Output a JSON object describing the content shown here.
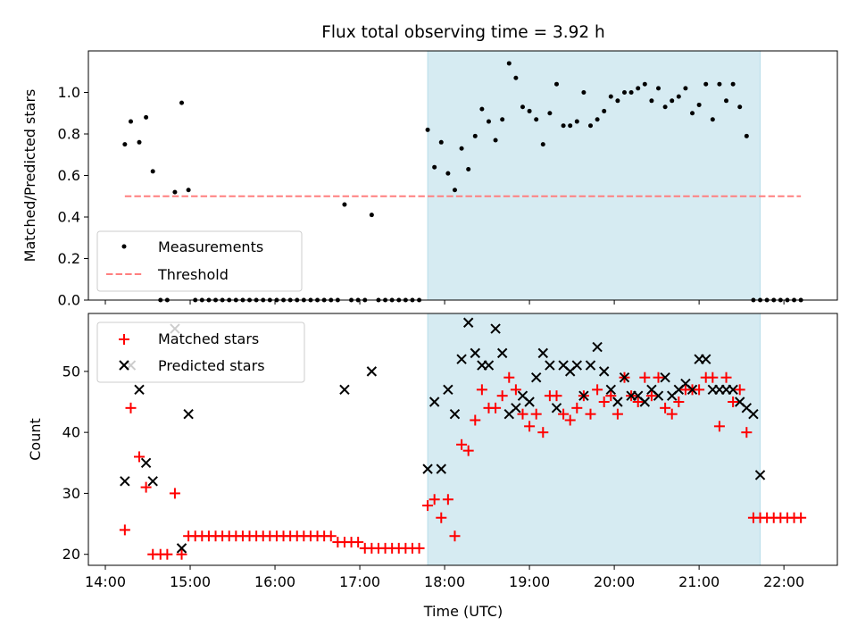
{
  "chart_data": {
    "title": "Flux total observing time = 3.92 h",
    "xlabel": "Time (UTC)",
    "x_unit": "hours UTC",
    "xlim": [
      13.8,
      22.63
    ],
    "xticks": [
      {
        "value": 14,
        "label": "14:00"
      },
      {
        "value": 15,
        "label": "15:00"
      },
      {
        "value": 16,
        "label": "16:00"
      },
      {
        "value": 17,
        "label": "17:00"
      },
      {
        "value": 18,
        "label": "18:00"
      },
      {
        "value": 19,
        "label": "19:00"
      },
      {
        "value": 20,
        "label": "20:00"
      },
      {
        "value": 21,
        "label": "21:00"
      },
      {
        "value": 22,
        "label": "22:00"
      }
    ],
    "shaded_span": {
      "x_start": 17.8,
      "x_end": 21.72,
      "color": "#add8e6"
    },
    "panels": [
      {
        "type": "scatter",
        "ylabel": "Matched/Predicted stars",
        "ylim": [
          0,
          1.2
        ],
        "yticks": [
          {
            "value": 0.0,
            "label": "0.0"
          },
          {
            "value": 0.2,
            "label": "0.2"
          },
          {
            "value": 0.4,
            "label": "0.4"
          },
          {
            "value": 0.6,
            "label": "0.6"
          },
          {
            "value": 0.8,
            "label": "0.8"
          },
          {
            "value": 1.0,
            "label": "1.0"
          }
        ],
        "legend": {
          "location": "lower left",
          "entries": [
            "Measurements",
            "Threshold"
          ]
        },
        "series": [
          {
            "name": "Measurements",
            "marker": "dot",
            "color": "#000000",
            "x": [
              14.23,
              14.3,
              14.4,
              14.48,
              14.56,
              14.65,
              14.73,
              14.82,
              14.9,
              14.98,
              15.06,
              15.14,
              15.22,
              15.3,
              15.38,
              15.46,
              15.54,
              15.62,
              15.7,
              15.78,
              15.86,
              15.94,
              16.02,
              16.1,
              16.18,
              16.26,
              16.34,
              16.42,
              16.5,
              16.58,
              16.66,
              16.74,
              16.82,
              16.9,
              16.98,
              17.06,
              17.14,
              17.22,
              17.3,
              17.38,
              17.46,
              17.54,
              17.62,
              17.7,
              17.8,
              17.88,
              17.96,
              18.04,
              18.12,
              18.2,
              18.28,
              18.36,
              18.44,
              18.52,
              18.6,
              18.68,
              18.76,
              18.84,
              18.92,
              19.0,
              19.08,
              19.16,
              19.24,
              19.32,
              19.4,
              19.48,
              19.56,
              19.64,
              19.72,
              19.8,
              19.88,
              19.96,
              20.04,
              20.12,
              20.2,
              20.28,
              20.36,
              20.44,
              20.52,
              20.6,
              20.68,
              20.76,
              20.84,
              20.92,
              21.0,
              21.08,
              21.16,
              21.24,
              21.32,
              21.4,
              21.48,
              21.56,
              21.64,
              21.72,
              21.8,
              21.88,
              21.96,
              22.04,
              22.12,
              22.2
            ],
            "y": [
              0.75,
              0.86,
              0.76,
              0.88,
              0.62,
              0.0,
              0.0,
              0.52,
              0.95,
              0.53,
              0.0,
              0.0,
              0.0,
              0.0,
              0.0,
              0.0,
              0.0,
              0.0,
              0.0,
              0.0,
              0.0,
              0.0,
              0.0,
              0.0,
              0.0,
              0.0,
              0.0,
              0.0,
              0.0,
              0.0,
              0.0,
              0.0,
              0.46,
              0.0,
              0.0,
              0.0,
              0.41,
              0.0,
              0.0,
              0.0,
              0.0,
              0.0,
              0.0,
              0.0,
              0.82,
              0.64,
              0.76,
              0.61,
              0.53,
              0.73,
              0.63,
              0.79,
              0.92,
              0.86,
              0.77,
              0.87,
              1.14,
              1.07,
              0.93,
              0.91,
              0.87,
              0.75,
              0.9,
              1.04,
              0.84,
              0.84,
              0.86,
              1.0,
              0.84,
              0.87,
              0.91,
              0.98,
              0.96,
              1.0,
              1.0,
              1.02,
              1.04,
              0.96,
              1.02,
              0.93,
              0.96,
              0.98,
              1.02,
              0.9,
              0.94,
              1.04,
              0.87,
              1.04,
              0.96,
              1.04,
              0.93,
              0.79,
              0.0,
              0.0,
              0.0,
              0.0,
              0.0,
              0.0,
              0.0,
              0.0
            ]
          },
          {
            "name": "Threshold",
            "line_style": "dashed",
            "color": "#ff7f7f",
            "x": [
              14.23,
              22.2
            ],
            "y": [
              0.5,
              0.5
            ]
          }
        ]
      },
      {
        "type": "scatter",
        "ylabel": "Count",
        "ylim": [
          18.2,
          59.5
        ],
        "yticks": [
          {
            "value": 20,
            "label": "20"
          },
          {
            "value": 30,
            "label": "30"
          },
          {
            "value": 40,
            "label": "40"
          },
          {
            "value": 50,
            "label": "50"
          }
        ],
        "legend": {
          "location": "upper left",
          "entries": [
            "Matched stars",
            "Predicted stars"
          ]
        },
        "series": [
          {
            "name": "Matched stars",
            "marker": "plus",
            "color": "#ff0000",
            "x": [
              14.23,
              14.3,
              14.4,
              14.48,
              14.56,
              14.65,
              14.73,
              14.82,
              14.9,
              14.98,
              15.06,
              15.14,
              15.22,
              15.3,
              15.38,
              15.46,
              15.54,
              15.62,
              15.7,
              15.78,
              15.86,
              15.94,
              16.02,
              16.1,
              16.18,
              16.26,
              16.34,
              16.42,
              16.5,
              16.58,
              16.66,
              16.74,
              16.82,
              16.9,
              16.98,
              17.06,
              17.14,
              17.22,
              17.3,
              17.38,
              17.46,
              17.54,
              17.62,
              17.7,
              17.8,
              17.88,
              17.96,
              18.04,
              18.12,
              18.2,
              18.28,
              18.36,
              18.44,
              18.52,
              18.6,
              18.68,
              18.76,
              18.84,
              18.92,
              19.0,
              19.08,
              19.16,
              19.24,
              19.32,
              19.4,
              19.48,
              19.56,
              19.64,
              19.72,
              19.8,
              19.88,
              19.96,
              20.04,
              20.12,
              20.2,
              20.28,
              20.36,
              20.44,
              20.52,
              20.6,
              20.68,
              20.76,
              20.84,
              20.92,
              21.0,
              21.08,
              21.16,
              21.24,
              21.32,
              21.4,
              21.48,
              21.56,
              21.64,
              21.72,
              21.8,
              21.88,
              21.96,
              22.04,
              22.12,
              22.2
            ],
            "y": [
              24,
              44,
              36,
              31,
              20,
              20,
              20,
              30,
              20,
              23,
              23,
              23,
              23,
              23,
              23,
              23,
              23,
              23,
              23,
              23,
              23,
              23,
              23,
              23,
              23,
              23,
              23,
              23,
              23,
              23,
              23,
              22,
              22,
              22,
              22,
              21,
              21,
              21,
              21,
              21,
              21,
              21,
              21,
              21,
              28,
              29,
              26,
              29,
              23,
              38,
              37,
              42,
              47,
              44,
              44,
              46,
              49,
              47,
              43,
              41,
              43,
              40,
              46,
              46,
              43,
              42,
              44,
              46,
              43,
              47,
              45,
              46,
              43,
              49,
              46,
              45,
              49,
              46,
              49,
              44,
              43,
              45,
              47,
              47,
              47,
              49,
              49,
              41,
              49,
              45,
              47,
              40,
              26,
              26,
              26,
              26,
              26,
              26,
              26,
              26
            ]
          },
          {
            "name": "Predicted stars",
            "marker": "x",
            "color": "#000000",
            "x": [
              14.23,
              14.3,
              14.4,
              14.48,
              14.56,
              14.82,
              14.9,
              14.98,
              16.82,
              17.14,
              17.8,
              17.88,
              17.96,
              18.04,
              18.12,
              18.2,
              18.28,
              18.36,
              18.44,
              18.52,
              18.6,
              18.68,
              18.76,
              18.84,
              18.92,
              19.0,
              19.08,
              19.16,
              19.24,
              19.32,
              19.4,
              19.48,
              19.56,
              19.64,
              19.72,
              19.8,
              19.88,
              19.96,
              20.04,
              20.12,
              20.2,
              20.28,
              20.36,
              20.44,
              20.52,
              20.6,
              20.68,
              20.76,
              20.84,
              20.92,
              21.0,
              21.08,
              21.16,
              21.24,
              21.32,
              21.4,
              21.48,
              21.56,
              21.64,
              21.72
            ],
            "y": [
              32,
              51,
              47,
              35,
              32,
              57,
              21,
              43,
              47,
              50,
              34,
              45,
              34,
              47,
              43,
              52,
              58,
              53,
              51,
              51,
              57,
              53,
              43,
              44,
              46,
              45,
              49,
              53,
              51,
              44,
              51,
              50,
              51,
              46,
              51,
              54,
              50,
              47,
              45,
              49,
              46,
              46,
              45,
              47,
              46,
              49,
              46,
              47,
              48,
              47,
              52,
              52,
              47,
              47,
              47,
              47,
              45,
              44,
              43,
              33
            ]
          }
        ]
      }
    ]
  }
}
